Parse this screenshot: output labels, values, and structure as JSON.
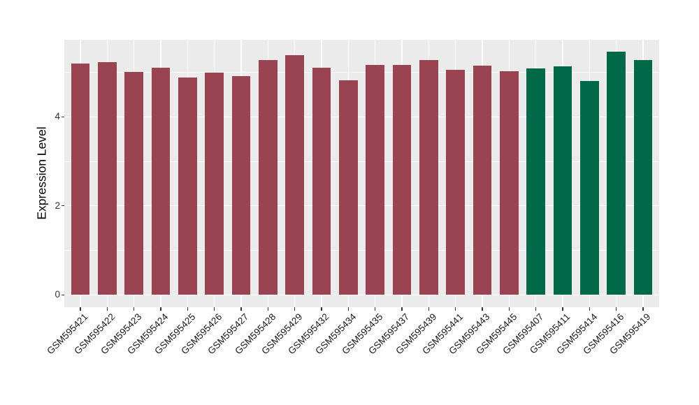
{
  "chart_data": {
    "type": "bar",
    "title": "",
    "xlabel": "",
    "ylabel": "Expression Level",
    "categories": [
      "GSM595421",
      "GSM595422",
      "GSM595423",
      "GSM595424",
      "GSM595425",
      "GSM595426",
      "GSM595427",
      "GSM595428",
      "GSM595429",
      "GSM595432",
      "GSM595434",
      "GSM595435",
      "GSM595437",
      "GSM595439",
      "GSM595441",
      "GSM595443",
      "GSM595445",
      "GSM595407",
      "GSM595411",
      "GSM595414",
      "GSM595416",
      "GSM595419"
    ],
    "values": [
      5.19,
      5.23,
      5.01,
      5.1,
      4.88,
      5.0,
      4.91,
      5.28,
      5.38,
      5.1,
      4.82,
      5.17,
      5.17,
      5.27,
      5.05,
      5.15,
      5.02,
      5.09,
      5.13,
      4.8,
      5.46,
      5.28
    ],
    "groups": [
      "group1",
      "group1",
      "group1",
      "group1",
      "group1",
      "group1",
      "group1",
      "group1",
      "group1",
      "group1",
      "group1",
      "group1",
      "group1",
      "group1",
      "group1",
      "group1",
      "group1",
      "group2",
      "group2",
      "group2",
      "group2",
      "group2"
    ],
    "group_colors": {
      "group1": "#9B4451",
      "group2": "#016948"
    },
    "y_ticks": [
      0,
      2,
      4
    ],
    "y_tick_labels": [
      "0",
      "2",
      "4"
    ],
    "y_minor_ticks": [
      1,
      3,
      5
    ],
    "ylim": [
      0,
      5.73
    ],
    "panel_background": "#EBEBEB",
    "grid_color": "#FFFFFF",
    "legend": "none",
    "grid": "on"
  }
}
